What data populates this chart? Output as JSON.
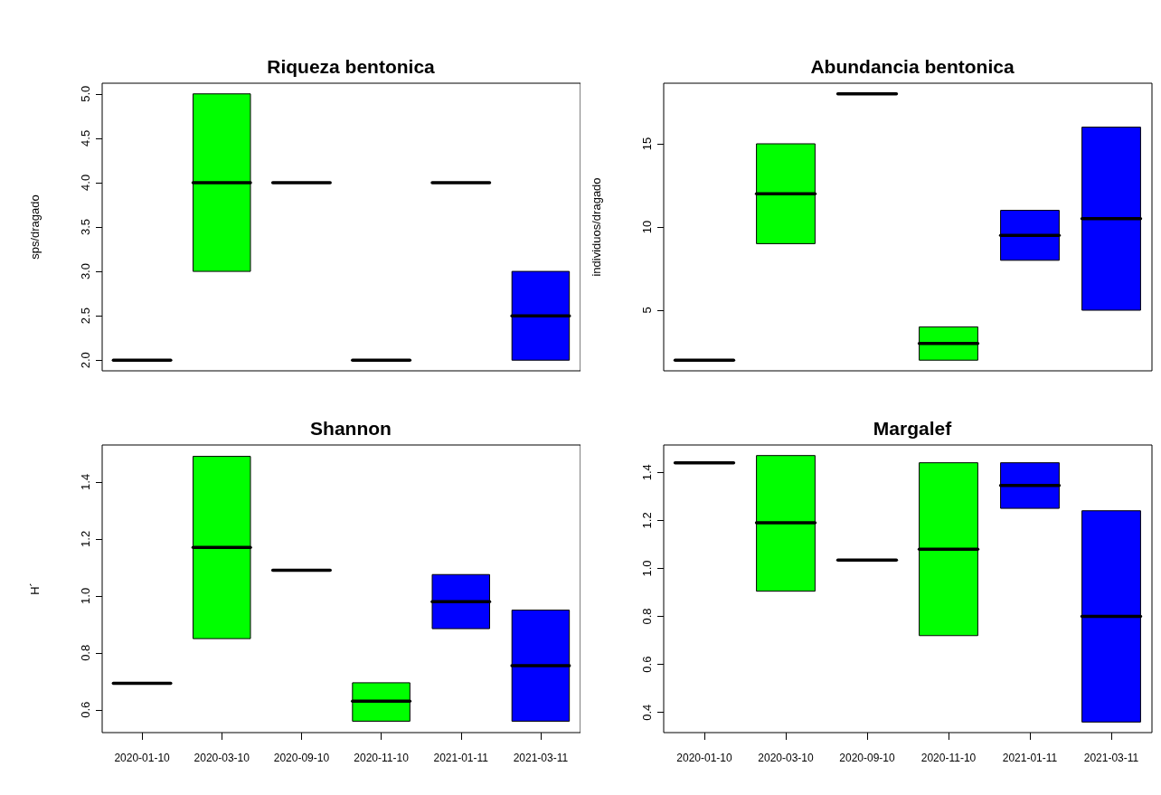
{
  "chart_data": [
    {
      "type": "box",
      "title": "Riqueza bentonica",
      "ylabel": "sps/dragado",
      "categories": [
        "2020-01-10",
        "2020-03-10",
        "2020-09-10",
        "2020-11-10",
        "2021-01-11",
        "2021-03-11"
      ],
      "colors": [
        "#000000",
        "#00ff00",
        "#000000",
        "#000000",
        "#000000",
        "#0000ff"
      ],
      "tick_labels": "y",
      "ylim": [
        1.88,
        5.12
      ],
      "yticks": [
        {
          "value": 2,
          "label": "2.0"
        },
        {
          "value": 2.5,
          "label": "2.5"
        },
        {
          "value": 3,
          "label": "3.0"
        },
        {
          "value": 3.5,
          "label": "3.5"
        },
        {
          "value": 4,
          "label": "4.0"
        },
        {
          "value": 4.5,
          "label": "4.5"
        },
        {
          "value": 5,
          "label": "5.0"
        }
      ],
      "grid": false,
      "boxes": [
        {
          "low": 2,
          "q1": 2,
          "median": 2,
          "q3": 2,
          "high": 2
        },
        {
          "low": 3,
          "q1": 3,
          "median": 4,
          "q3": 5,
          "high": 5
        },
        {
          "low": 4,
          "q1": 4,
          "median": 4,
          "q3": 4,
          "high": 4
        },
        {
          "low": 2,
          "q1": 2,
          "median": 2,
          "q3": 2,
          "high": 2
        },
        {
          "low": 4,
          "q1": 4,
          "median": 4,
          "q3": 4,
          "high": 4
        },
        {
          "low": 2,
          "q1": 2,
          "median": 2.5,
          "q3": 3,
          "high": 3
        }
      ]
    },
    {
      "type": "box",
      "title": "Abundancia bentonica",
      "ylabel": "individuos/dragado",
      "categories": [
        "2020-01-10",
        "2020-03-10",
        "2020-09-10",
        "2020-11-10",
        "2021-01-11",
        "2021-03-11"
      ],
      "colors": [
        "#000000",
        "#00ff00",
        "#000000",
        "#00ff00",
        "#0000ff",
        "#0000ff"
      ],
      "tick_labels": "y",
      "ylim": [
        1.36,
        18.64
      ],
      "yticks": [
        5,
        10,
        15
      ],
      "grid": false,
      "boxes": [
        {
          "low": 2,
          "q1": 2,
          "median": 2,
          "q3": 2,
          "high": 2
        },
        {
          "low": 9,
          "q1": 9,
          "median": 12,
          "q3": 15,
          "high": 15
        },
        {
          "low": 18,
          "q1": 18,
          "median": 18,
          "q3": 18,
          "high": 18
        },
        {
          "low": 2,
          "q1": 2,
          "median": 3,
          "q3": 4,
          "high": 4
        },
        {
          "low": 8,
          "q1": 8,
          "median": 9.5,
          "q3": 11,
          "high": 11
        },
        {
          "low": 5,
          "q1": 5,
          "median": 10.5,
          "q3": 16,
          "high": 16
        }
      ]
    },
    {
      "type": "box",
      "title": "Shannon",
      "ylabel": "H´",
      "categories": [
        "2020-01-10",
        "2020-03-10",
        "2020-09-10",
        "2020-11-10",
        "2021-01-11",
        "2021-03-11"
      ],
      "colors": [
        "#000000",
        "#00ff00",
        "#000000",
        "#00ff00",
        "#0000ff",
        "#0000ff"
      ],
      "ylim": [
        0.52,
        1.53
      ],
      "yticks": [
        0.6,
        0.8,
        {
          "value": 1,
          "label": "1.0"
        },
        1.2,
        1.4
      ],
      "grid": false,
      "boxes": [
        {
          "low": 0.693,
          "q1": 0.693,
          "median": 0.693,
          "q3": 0.693,
          "high": 0.693
        },
        {
          "low": 0.85,
          "q1": 0.85,
          "median": 1.17,
          "q3": 1.49,
          "high": 1.49
        },
        {
          "low": 1.09,
          "q1": 1.09,
          "median": 1.09,
          "q3": 1.09,
          "high": 1.09
        },
        {
          "low": 0.56,
          "q1": 0.56,
          "median": 0.63,
          "q3": 0.695,
          "high": 0.695
        },
        {
          "low": 0.885,
          "q1": 0.885,
          "median": 0.98,
          "q3": 1.075,
          "high": 1.075
        },
        {
          "low": 0.56,
          "q1": 0.56,
          "median": 0.755,
          "q3": 0.95,
          "high": 0.95
        }
      ]
    },
    {
      "type": "box",
      "title": "Margalef",
      "categories": [
        "2020-01-10",
        "2020-03-10",
        "2020-09-10",
        "2020-11-10",
        "2021-01-11",
        "2021-03-11"
      ],
      "colors": [
        "#000000",
        "#00ff00",
        "#000000",
        "#00ff00",
        "#0000ff",
        "#0000ff"
      ],
      "ylim": [
        0.316,
        1.514
      ],
      "yticks": [
        0.4,
        0.6,
        0.8,
        {
          "value": 1,
          "label": "1.0"
        },
        1.2,
        1.4
      ],
      "grid": false,
      "boxes": [
        {
          "low": 1.44,
          "q1": 1.44,
          "median": 1.44,
          "q3": 1.44,
          "high": 1.44
        },
        {
          "low": 0.905,
          "q1": 0.905,
          "median": 1.19,
          "q3": 1.47,
          "high": 1.47
        },
        {
          "low": 1.035,
          "q1": 1.035,
          "median": 1.035,
          "q3": 1.035,
          "high": 1.035
        },
        {
          "low": 0.72,
          "q1": 0.72,
          "median": 1.08,
          "q3": 1.44,
          "high": 1.44
        },
        {
          "low": 1.25,
          "q1": 1.25,
          "median": 1.345,
          "q3": 1.44,
          "high": 1.44
        },
        {
          "low": 0.36,
          "q1": 0.36,
          "median": 0.8,
          "q3": 1.24,
          "high": 1.24
        }
      ]
    }
  ]
}
